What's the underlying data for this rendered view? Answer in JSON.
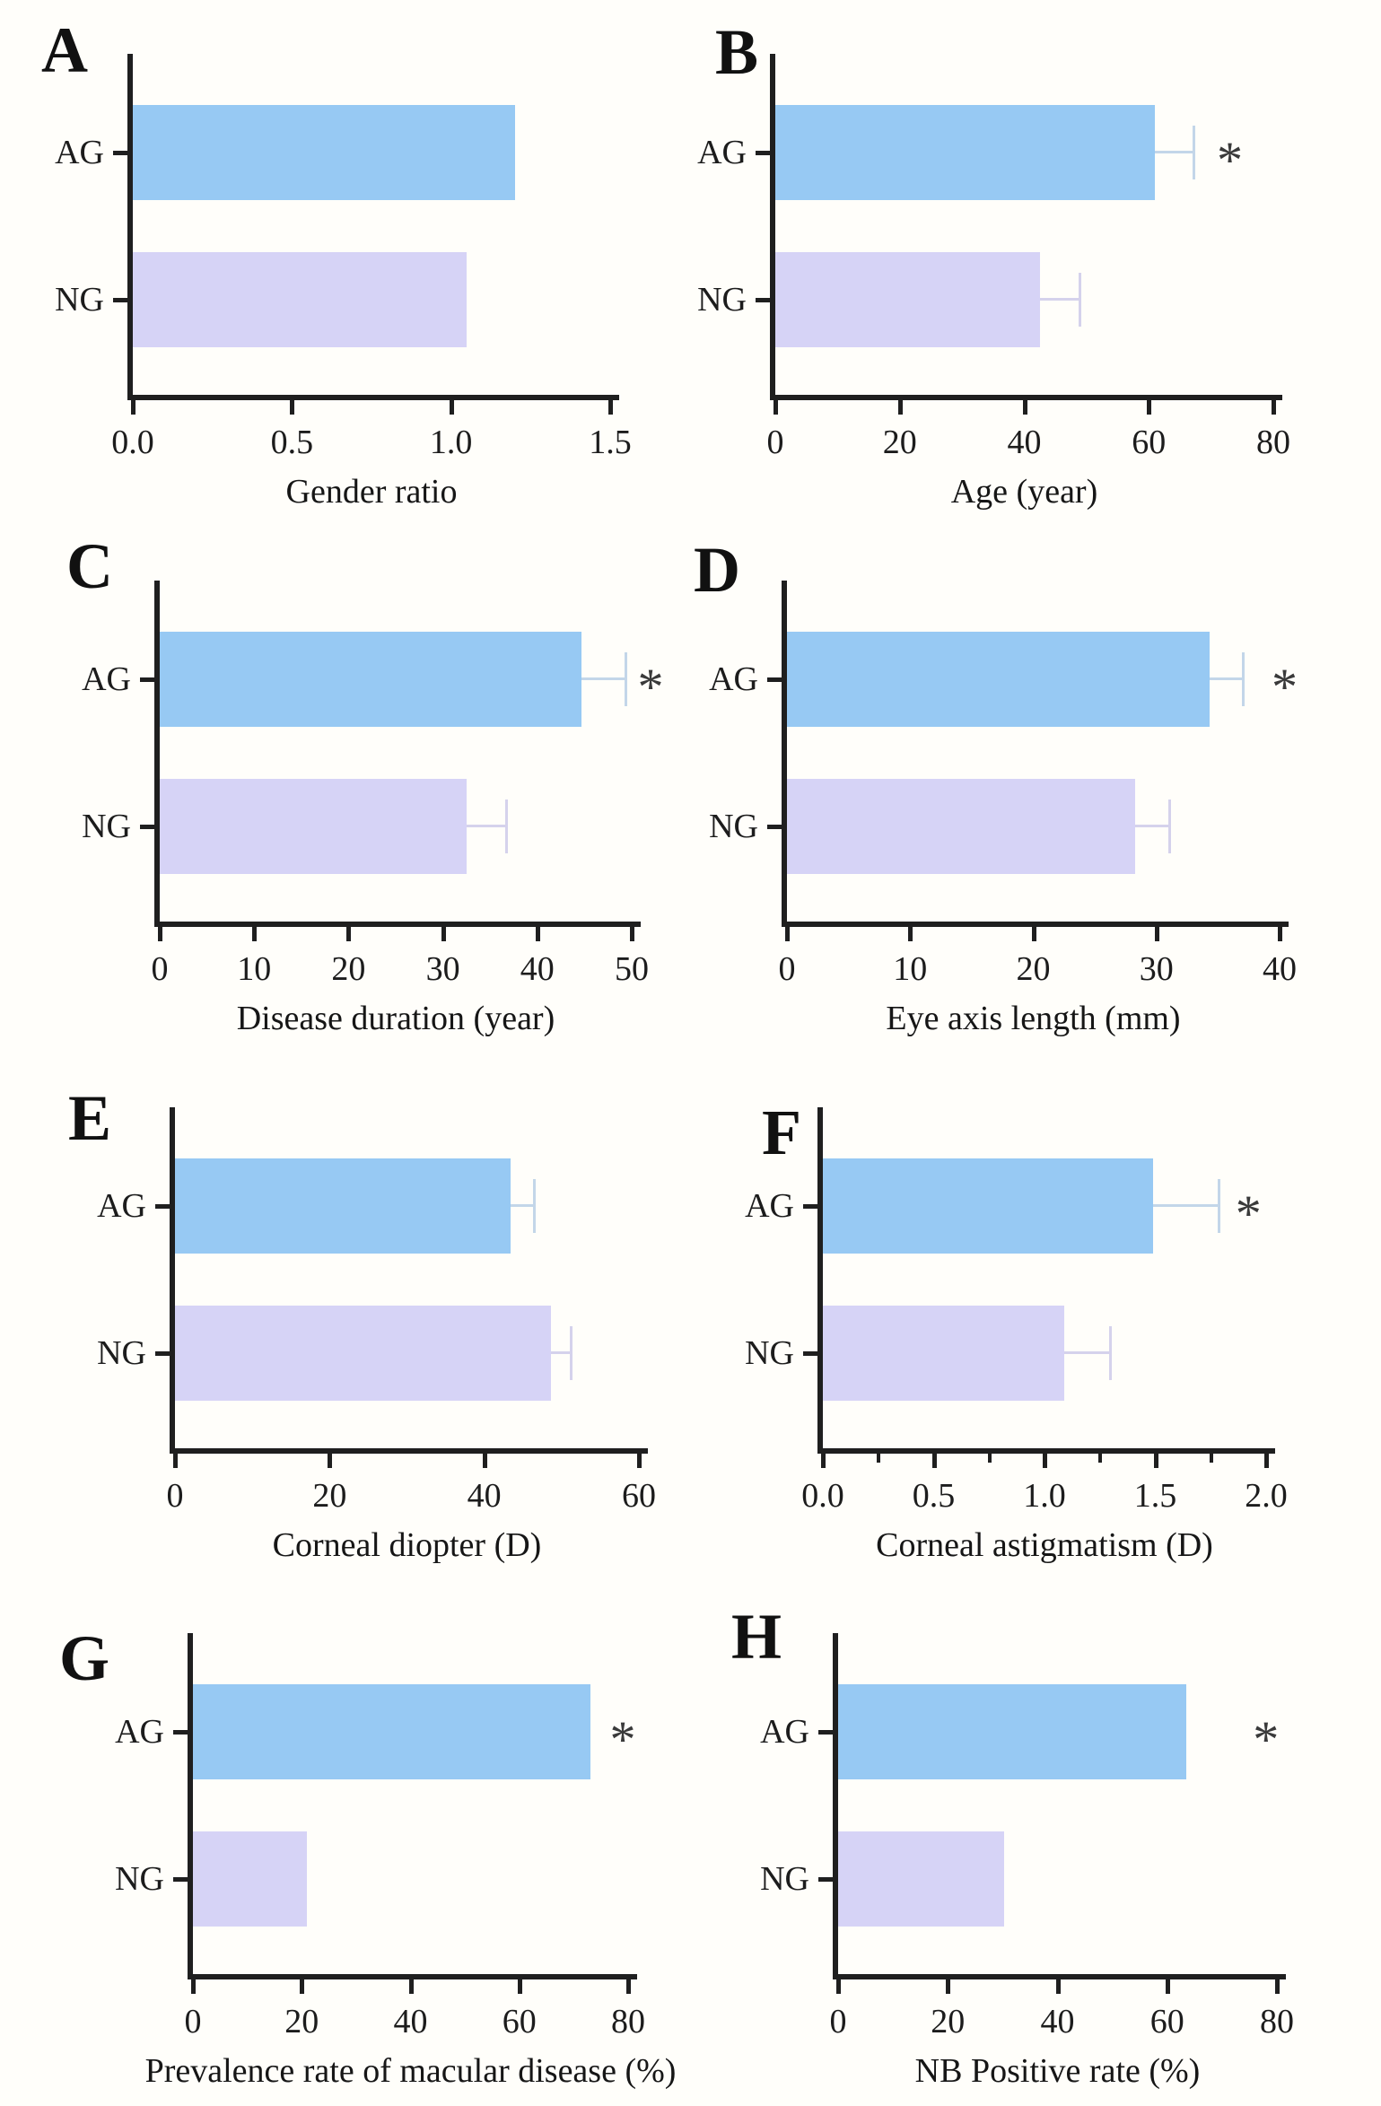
{
  "figure": {
    "description": "Eight-panel horizontal bar chart figure comparing AG and NG groups",
    "group_labels": [
      "AG",
      "NG"
    ],
    "colors": {
      "bar_ag": "#97c9f3",
      "bar_ng": "#d6d3f6",
      "err_ag": "#c3d6e9",
      "err_ng": "#d5d2ec",
      "axis": "#1f1f1f",
      "asterisk": "#3a3a3a"
    }
  },
  "chart_data": [
    {
      "type": "bar",
      "panel": "A",
      "orientation": "horizontal",
      "xlabel": "Gender ratio",
      "xmax": 1.5,
      "xticks": [
        {
          "v": 0,
          "label": "0.0"
        },
        {
          "v": 0.5,
          "label": "0.5"
        },
        {
          "v": 1,
          "label": "1.0"
        },
        {
          "v": 1.5,
          "label": "1.5"
        }
      ],
      "series": [
        {
          "name": "AG",
          "value": 1.2,
          "error": null
        },
        {
          "name": "NG",
          "value": 1.05,
          "error": null
        }
      ],
      "significance": null
    },
    {
      "type": "bar",
      "panel": "B",
      "orientation": "horizontal",
      "xlabel": "Age (year)",
      "xmax": 80,
      "xticks": [
        {
          "v": 0,
          "label": "0"
        },
        {
          "v": 20,
          "label": "20"
        },
        {
          "v": 40,
          "label": "40"
        },
        {
          "v": 60,
          "label": "60"
        },
        {
          "v": 80,
          "label": "80"
        }
      ],
      "series": [
        {
          "name": "AG",
          "value": 61,
          "error": 6.3
        },
        {
          "name": "NG",
          "value": 42.5,
          "error": 6.5
        }
      ],
      "significance": {
        "series": "AG",
        "symbol": "*",
        "x": 73
      }
    },
    {
      "type": "bar",
      "panel": "C",
      "orientation": "horizontal",
      "xlabel": "Disease duration (year)",
      "xmax": 50,
      "xticks": [
        {
          "v": 0,
          "label": "0"
        },
        {
          "v": 10,
          "label": "10"
        },
        {
          "v": 20,
          "label": "20"
        },
        {
          "v": 30,
          "label": "30"
        },
        {
          "v": 40,
          "label": "40"
        },
        {
          "v": 50,
          "label": "50"
        }
      ],
      "series": [
        {
          "name": "AG",
          "value": 44.7,
          "error": 4.7
        },
        {
          "name": "NG",
          "value": 32.5,
          "error": 4.3
        }
      ],
      "significance": {
        "series": "AG",
        "symbol": "*",
        "x": 52
      }
    },
    {
      "type": "bar",
      "panel": "D",
      "orientation": "horizontal",
      "xlabel": "Eye axis length (mm)",
      "xmax": 40,
      "xticks": [
        {
          "v": 0,
          "label": "0"
        },
        {
          "v": 10,
          "label": "10"
        },
        {
          "v": 20,
          "label": "20"
        },
        {
          "v": 30,
          "label": "30"
        },
        {
          "v": 40,
          "label": "40"
        }
      ],
      "series": [
        {
          "name": "AG",
          "value": 34.3,
          "error": 2.8
        },
        {
          "name": "NG",
          "value": 28.3,
          "error": 2.8
        }
      ],
      "significance": {
        "series": "AG",
        "symbol": "*",
        "x": 40.4
      }
    },
    {
      "type": "bar",
      "panel": "E",
      "orientation": "horizontal",
      "xlabel": "Corneal diopter (D)",
      "xmax": 60,
      "xticks": [
        {
          "v": 0,
          "label": "0"
        },
        {
          "v": 20,
          "label": "20"
        },
        {
          "v": 40,
          "label": "40"
        },
        {
          "v": 60,
          "label": "60"
        }
      ],
      "series": [
        {
          "name": "AG",
          "value": 43.4,
          "error": 3.1
        },
        {
          "name": "NG",
          "value": 48.6,
          "error": 2.7
        }
      ],
      "significance": null
    },
    {
      "type": "bar",
      "panel": "F",
      "orientation": "horizontal",
      "xlabel": "Corneal astigmatism (D)",
      "xmax": 2.0,
      "minor_tick_step": 0.25,
      "xticks": [
        {
          "v": 0,
          "label": "0.0"
        },
        {
          "v": 0.5,
          "label": "0.5"
        },
        {
          "v": 1,
          "label": "1.0"
        },
        {
          "v": 1.5,
          "label": "1.5"
        },
        {
          "v": 2,
          "label": "2.0"
        }
      ],
      "series": [
        {
          "name": "AG",
          "value": 1.49,
          "error": 0.3
        },
        {
          "name": "NG",
          "value": 1.09,
          "error": 0.21
        }
      ],
      "significance": {
        "series": "AG",
        "symbol": "*",
        "x": 1.92
      }
    },
    {
      "type": "bar",
      "panel": "G",
      "orientation": "horizontal",
      "xlabel": "Prevalence rate of macular disease (%)",
      "xmax": 80,
      "xticks": [
        {
          "v": 0,
          "label": "0"
        },
        {
          "v": 20,
          "label": "20"
        },
        {
          "v": 40,
          "label": "40"
        },
        {
          "v": 60,
          "label": "60"
        },
        {
          "v": 80,
          "label": "80"
        }
      ],
      "series": [
        {
          "name": "AG",
          "value": 73,
          "error": null
        },
        {
          "name": "NG",
          "value": 21,
          "error": null
        }
      ],
      "significance": {
        "series": "AG",
        "symbol": "*",
        "x": 79
      }
    },
    {
      "type": "bar",
      "panel": "H",
      "orientation": "horizontal",
      "xlabel": "NB Positive rate (%)",
      "xmax": 80,
      "xticks": [
        {
          "v": 0,
          "label": "0"
        },
        {
          "v": 20,
          "label": "20"
        },
        {
          "v": 40,
          "label": "40"
        },
        {
          "v": 60,
          "label": "60"
        },
        {
          "v": 80,
          "label": "80"
        }
      ],
      "series": [
        {
          "name": "AG",
          "value": 63.5,
          "error": null
        },
        {
          "name": "NG",
          "value": 30.2,
          "error": null
        }
      ],
      "significance": {
        "series": "AG",
        "symbol": "*",
        "x": 78
      }
    }
  ]
}
